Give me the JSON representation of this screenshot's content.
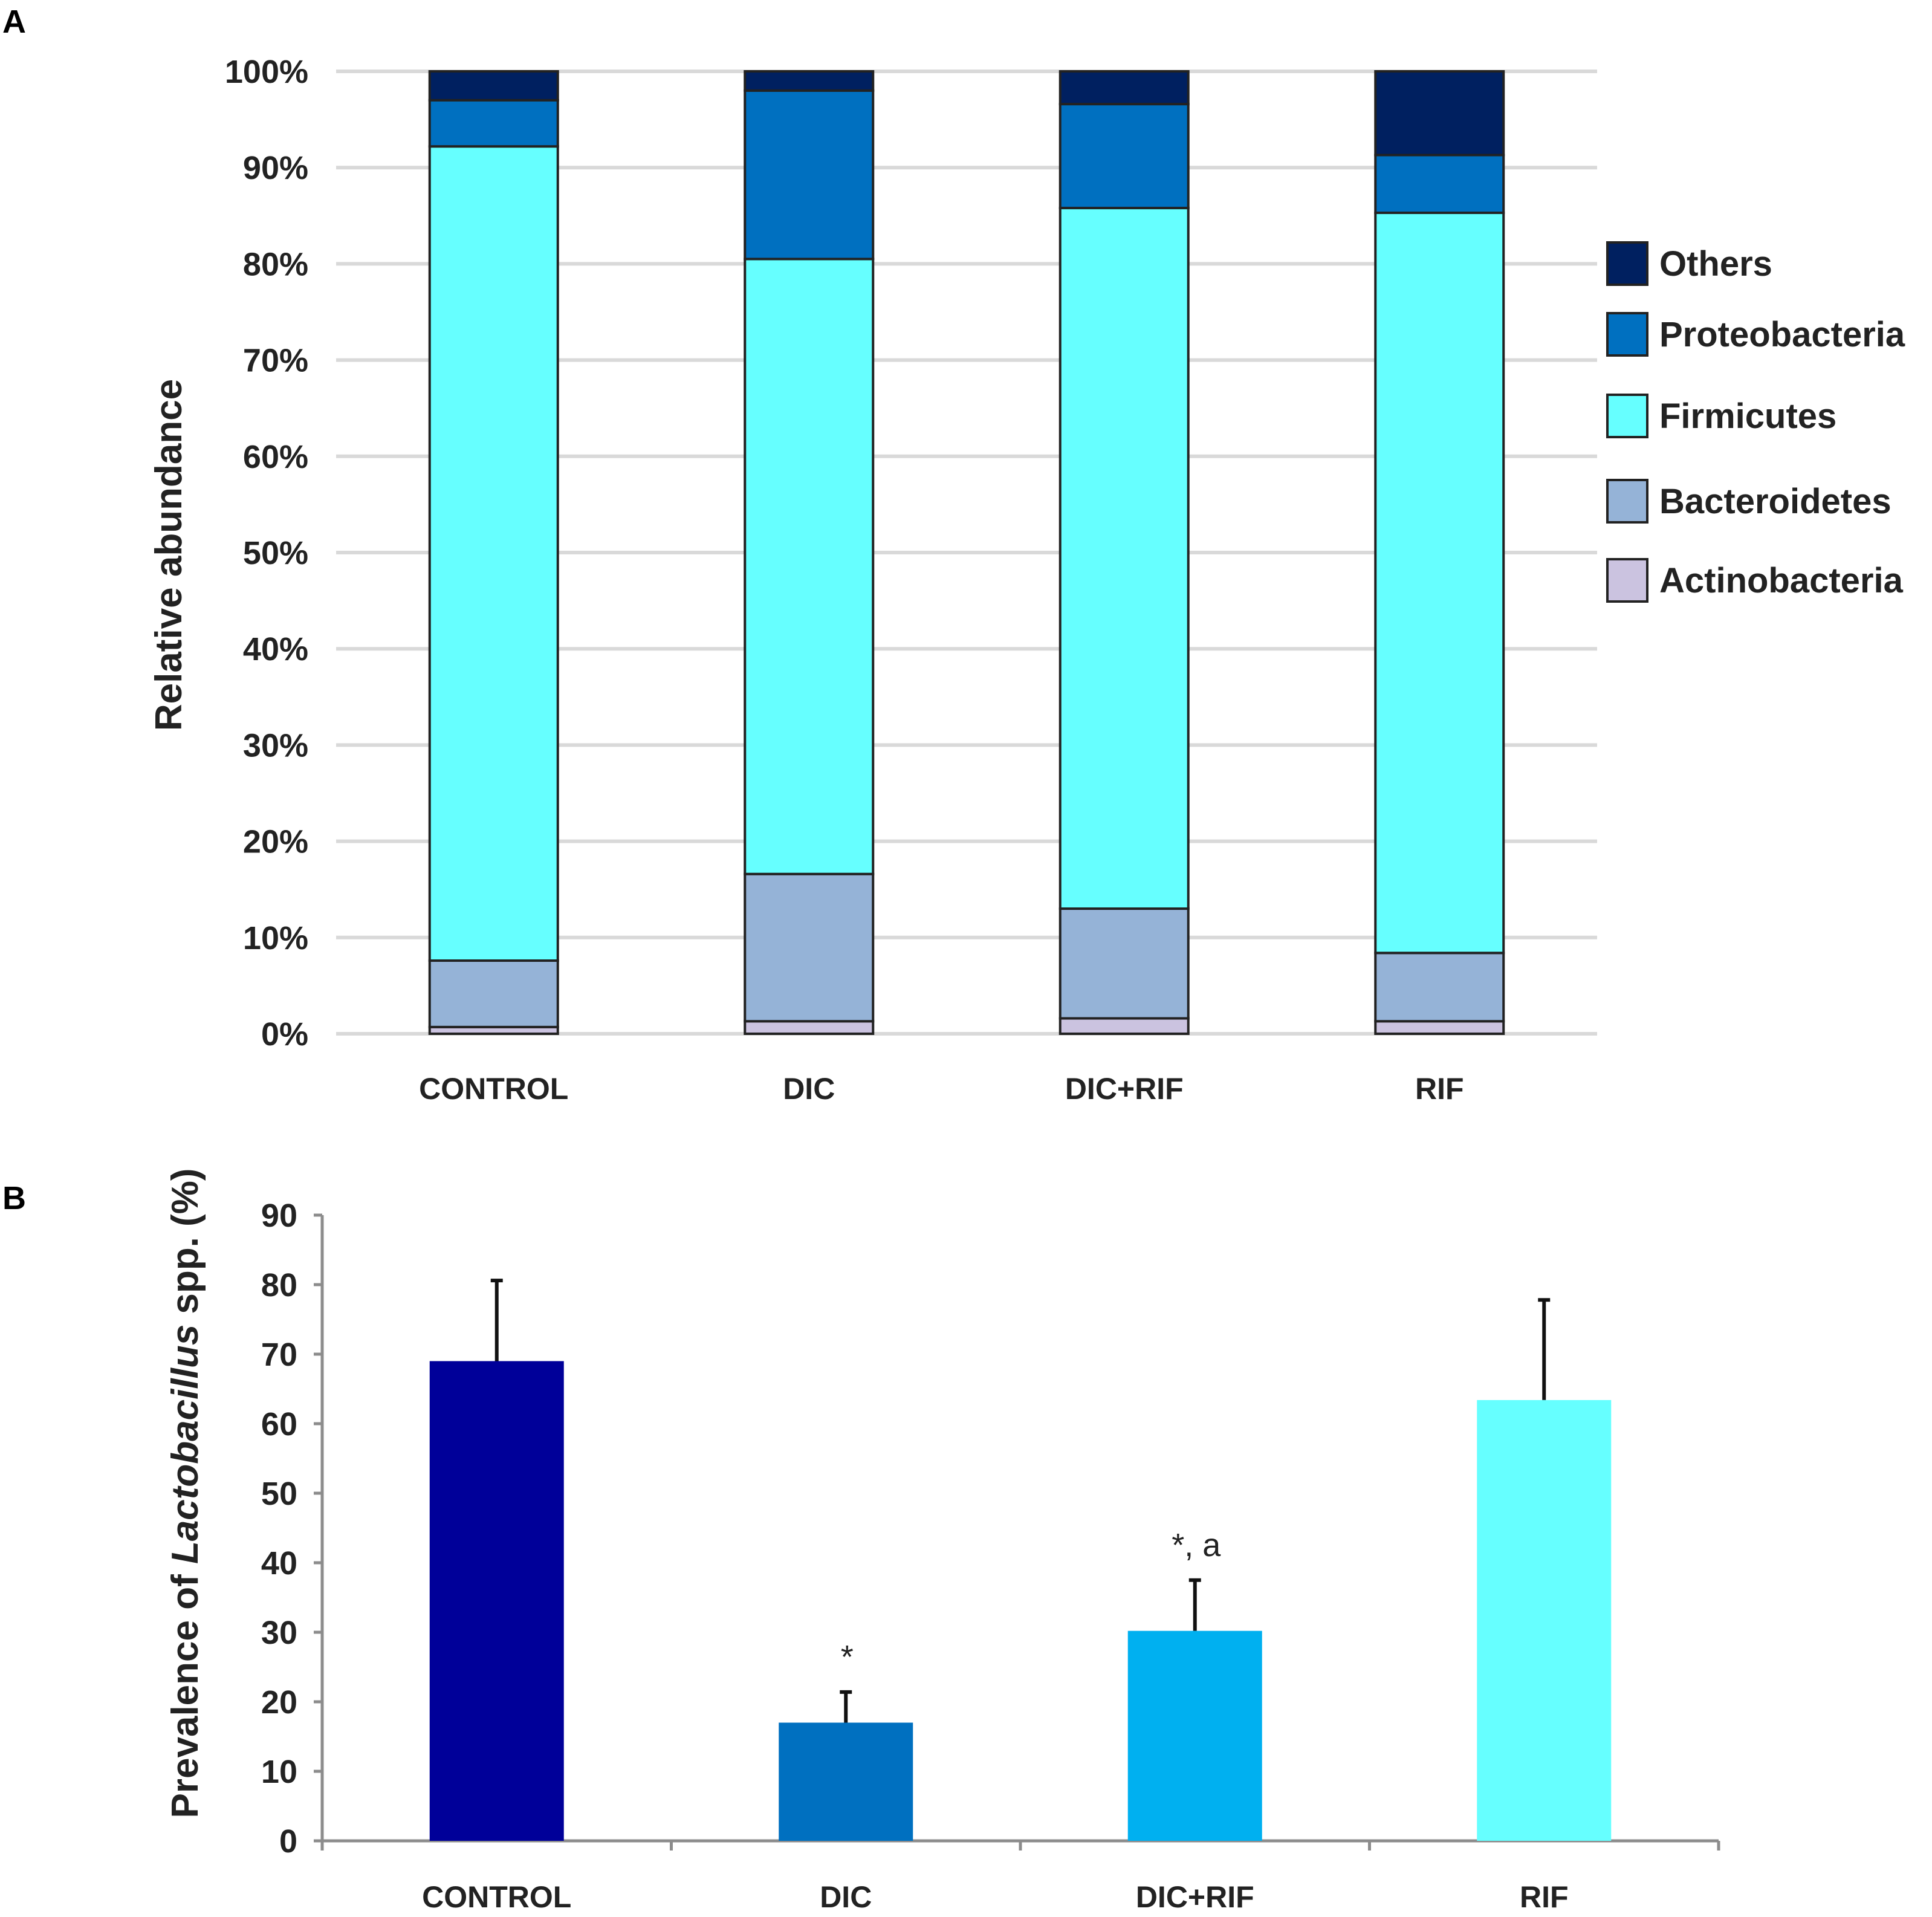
{
  "chart_data": [
    {
      "panel": "A",
      "type": "bar",
      "stacked": true,
      "ylabel": "Relative abundance",
      "ylim": [
        0,
        100
      ],
      "yticks": [
        "0%",
        "10%",
        "20%",
        "30%",
        "40%",
        "50%",
        "60%",
        "70%",
        "80%",
        "90%",
        "100%"
      ],
      "categories": [
        "CONTROL",
        "DIC",
        "DIC+RIF",
        "RIF"
      ],
      "grid": true,
      "legend_position": "right",
      "series": [
        {
          "name": "Actinobacteria",
          "color": "#cbc3e0",
          "values": [
            0.7,
            1.3,
            1.6,
            1.3
          ]
        },
        {
          "name": "Bacteroidetes",
          "color": "#95b3d7",
          "values": [
            6.9,
            15.3,
            11.4,
            7.1
          ]
        },
        {
          "name": "Firmicutes",
          "color": "#66ffff",
          "values": [
            84.6,
            63.9,
            72.8,
            76.9
          ]
        },
        {
          "name": "Proteobacteria",
          "color": "#0070c0",
          "values": [
            4.8,
            17.5,
            10.8,
            6.0
          ]
        },
        {
          "name": "Others",
          "color": "#002060",
          "values": [
            3.0,
            2.0,
            3.4,
            8.7
          ]
        }
      ],
      "legend_order": [
        "Others",
        "Proteobacteria",
        "Firmicutes",
        "Bacteroidetes",
        "Actinobacteria"
      ]
    },
    {
      "panel": "B",
      "type": "bar",
      "ylabel_prefix": "Prevalence of ",
      "ylabel_italic": "Lactobacillus",
      "ylabel_suffix": " spp. (%)",
      "ylim": [
        0,
        90
      ],
      "yticks": [
        "0",
        "10",
        "20",
        "30",
        "40",
        "50",
        "60",
        "70",
        "80",
        "90"
      ],
      "categories": [
        "CONTROL",
        "DIC",
        "DIC+RIF",
        "RIF"
      ],
      "values": [
        69,
        17,
        30.2,
        63.4
      ],
      "errors": [
        11.6,
        4.4,
        7.3,
        14.4
      ],
      "colors": [
        "#000099",
        "#0070c0",
        "#00b0f0",
        "#66ffff"
      ],
      "annotations": [
        "",
        "*",
        "*, a",
        ""
      ],
      "grid": false
    }
  ]
}
